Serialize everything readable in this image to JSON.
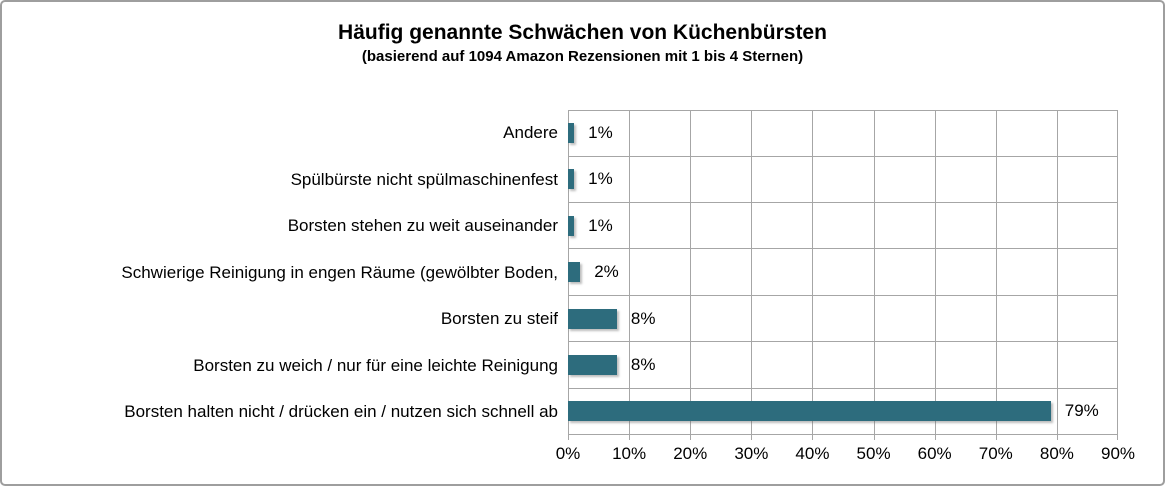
{
  "chart_data": {
    "type": "bar",
    "orientation": "horizontal",
    "title": "Häufig genannte Schwächen von Küchenbürsten",
    "subtitle": "(basierend auf 1094 Amazon Rezensionen mit 1 bis 4 Sternen)",
    "categories": [
      "Andere",
      "Spülbürste nicht spülmaschinenfest",
      "Borsten stehen zu weit auseinander",
      "Schwierige Reinigung in engen Räume (gewölbter Boden,",
      "Borsten zu steif",
      "Borsten zu weich / nur für eine leichte Reinigung",
      "Borsten halten nicht / drücken ein / nutzen sich schnell ab"
    ],
    "values": [
      1,
      1,
      1,
      2,
      8,
      8,
      79
    ],
    "value_labels": [
      "1%",
      "1%",
      "1%",
      "2%",
      "8%",
      "8%",
      "79%"
    ],
    "xlabel": "",
    "ylabel": "",
    "xlim": [
      0,
      90
    ],
    "x_ticks": [
      "0%",
      "10%",
      "20%",
      "30%",
      "40%",
      "50%",
      "60%",
      "70%",
      "80%",
      "90%"
    ],
    "grid": true,
    "legend": "none",
    "bar_color": "#2d6c7d",
    "gridline_color": "#a6a6a6",
    "border_color": "#9e9e9e",
    "text_color": "#000000"
  }
}
